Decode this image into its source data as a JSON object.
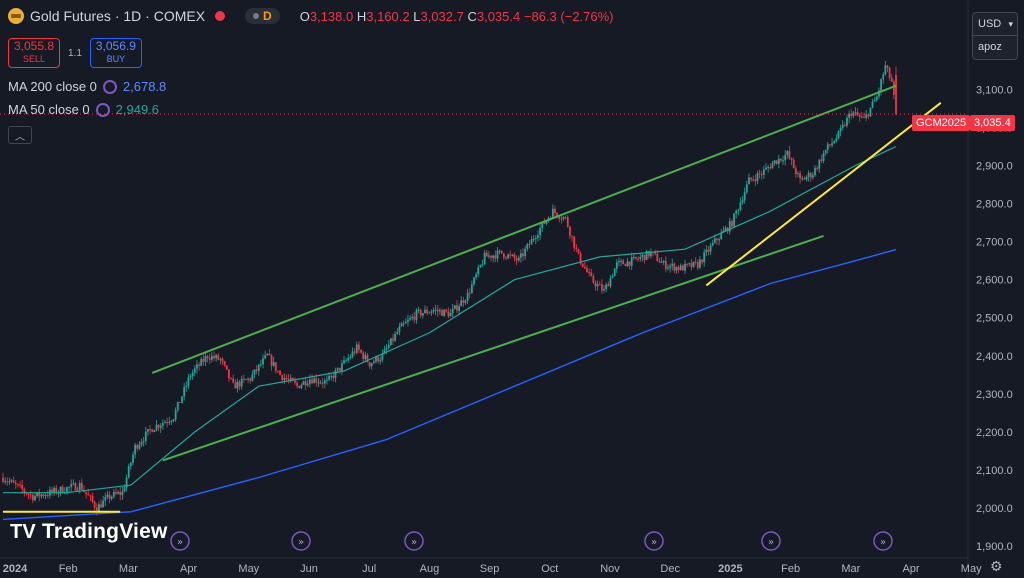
{
  "header": {
    "title": "Gold Futures · 1D · COMEX",
    "badge": "D",
    "ohlc": [
      {
        "k": "O",
        "v": "3,138.0"
      },
      {
        "k": "H",
        "v": "3,160.2"
      },
      {
        "k": "L",
        "v": "3,032.7"
      },
      {
        "k": "C",
        "v": "3,035.4"
      }
    ],
    "change": "−86.3 (−2.76%)"
  },
  "trade": {
    "sell_price": "3,055.8",
    "sell_label": "SELL",
    "spread": "1.1",
    "buy_price": "3,056.9",
    "buy_label": "BUY"
  },
  "indicators": [
    {
      "label": "MA 200 close 0",
      "value": "2,678.8",
      "color": "#2962ff"
    },
    {
      "label": "MA 50 close 0",
      "value": "2,949.6",
      "color": "#26a69a"
    }
  ],
  "collapse_icon": "chevron-up-icon",
  "logo": {
    "text": "TradingView"
  },
  "scale": {
    "currency": "USD",
    "mode": "apoz"
  },
  "last_price": {
    "symbol": "GCM2025",
    "value": "3,035.4"
  },
  "colors": {
    "bg": "#161a25",
    "up": "#26a69a",
    "down": "#f23645",
    "ma200": "#2962ff",
    "ma50": "#26a69a",
    "channel": "#4caf50",
    "trend": "#ffeb3b"
  },
  "chart_data": {
    "type": "candlestick",
    "title": "Gold Futures · 1D · COMEX",
    "ylim": [
      1900,
      3230
    ],
    "y_ticks": [
      "1,900.0",
      "2,000.0",
      "2,100.0",
      "2,200.0",
      "2,300.0",
      "2,400.0",
      "2,500.0",
      "2,600.0",
      "2,700.0",
      "2,800.0",
      "2,900.0",
      "3,000.0",
      "3,100.0"
    ],
    "x_ticks": [
      "2024",
      "Feb",
      "Mar",
      "Apr",
      "May",
      "Jun",
      "Jul",
      "Aug",
      "Sep",
      "Oct",
      "Nov",
      "Dec",
      "2025",
      "Feb",
      "Mar",
      "Apr",
      "May"
    ],
    "anchors": [
      [
        0,
        2080
      ],
      [
        14,
        2030
      ],
      [
        22,
        2040
      ],
      [
        36,
        2060
      ],
      [
        44,
        2000
      ],
      [
        50,
        2030
      ],
      [
        56,
        2040
      ],
      [
        62,
        2160
      ],
      [
        70,
        2210
      ],
      [
        80,
        2240
      ],
      [
        88,
        2350
      ],
      [
        96,
        2400
      ],
      [
        102,
        2390
      ],
      [
        108,
        2320
      ],
      [
        116,
        2340
      ],
      [
        124,
        2400
      ],
      [
        130,
        2350
      ],
      [
        138,
        2320
      ],
      [
        144,
        2340
      ],
      [
        152,
        2330
      ],
      [
        160,
        2380
      ],
      [
        166,
        2420
      ],
      [
        172,
        2380
      ],
      [
        178,
        2400
      ],
      [
        186,
        2470
      ],
      [
        194,
        2510
      ],
      [
        202,
        2520
      ],
      [
        210,
        2510
      ],
      [
        218,
        2560
      ],
      [
        226,
        2660
      ],
      [
        234,
        2670
      ],
      [
        242,
        2650
      ],
      [
        250,
        2720
      ],
      [
        258,
        2780
      ],
      [
        264,
        2760
      ],
      [
        270,
        2660
      ],
      [
        276,
        2600
      ],
      [
        282,
        2570
      ],
      [
        288,
        2640
      ],
      [
        296,
        2650
      ],
      [
        304,
        2670
      ],
      [
        310,
        2640
      ],
      [
        318,
        2630
      ],
      [
        326,
        2640
      ],
      [
        334,
        2700
      ],
      [
        342,
        2750
      ],
      [
        350,
        2860
      ],
      [
        356,
        2880
      ],
      [
        362,
        2910
      ],
      [
        368,
        2930
      ],
      [
        374,
        2860
      ],
      [
        380,
        2880
      ],
      [
        386,
        2940
      ],
      [
        392,
        2980
      ],
      [
        398,
        3040
      ],
      [
        404,
        3020
      ],
      [
        410,
        3080
      ],
      [
        414,
        3160
      ],
      [
        417,
        3120
      ],
      [
        419,
        3035
      ]
    ],
    "ma50": [
      [
        0,
        2040
      ],
      [
        30,
        2040
      ],
      [
        60,
        2060
      ],
      [
        90,
        2200
      ],
      [
        120,
        2320
      ],
      [
        160,
        2360
      ],
      [
        200,
        2460
      ],
      [
        240,
        2600
      ],
      [
        280,
        2660
      ],
      [
        320,
        2680
      ],
      [
        360,
        2780
      ],
      [
        400,
        2900
      ],
      [
        419,
        2950
      ]
    ],
    "ma200": [
      [
        0,
        1970
      ],
      [
        60,
        1990
      ],
      [
        120,
        2080
      ],
      [
        180,
        2180
      ],
      [
        240,
        2320
      ],
      [
        300,
        2460
      ],
      [
        360,
        2590
      ],
      [
        400,
        2650
      ],
      [
        419,
        2679
      ]
    ],
    "channel_upper": [
      [
        70,
        2355
      ],
      [
        419,
        3110
      ]
    ],
    "channel_lower": [
      [
        75,
        2125
      ],
      [
        385,
        2715
      ]
    ],
    "support_lines": [
      [
        [
          0,
          1990
        ],
        [
          55,
          1990
        ]
      ],
      [
        [
          330,
          2585
        ],
        [
          440,
          3065
        ]
      ]
    ],
    "last_price": 3035.4
  }
}
